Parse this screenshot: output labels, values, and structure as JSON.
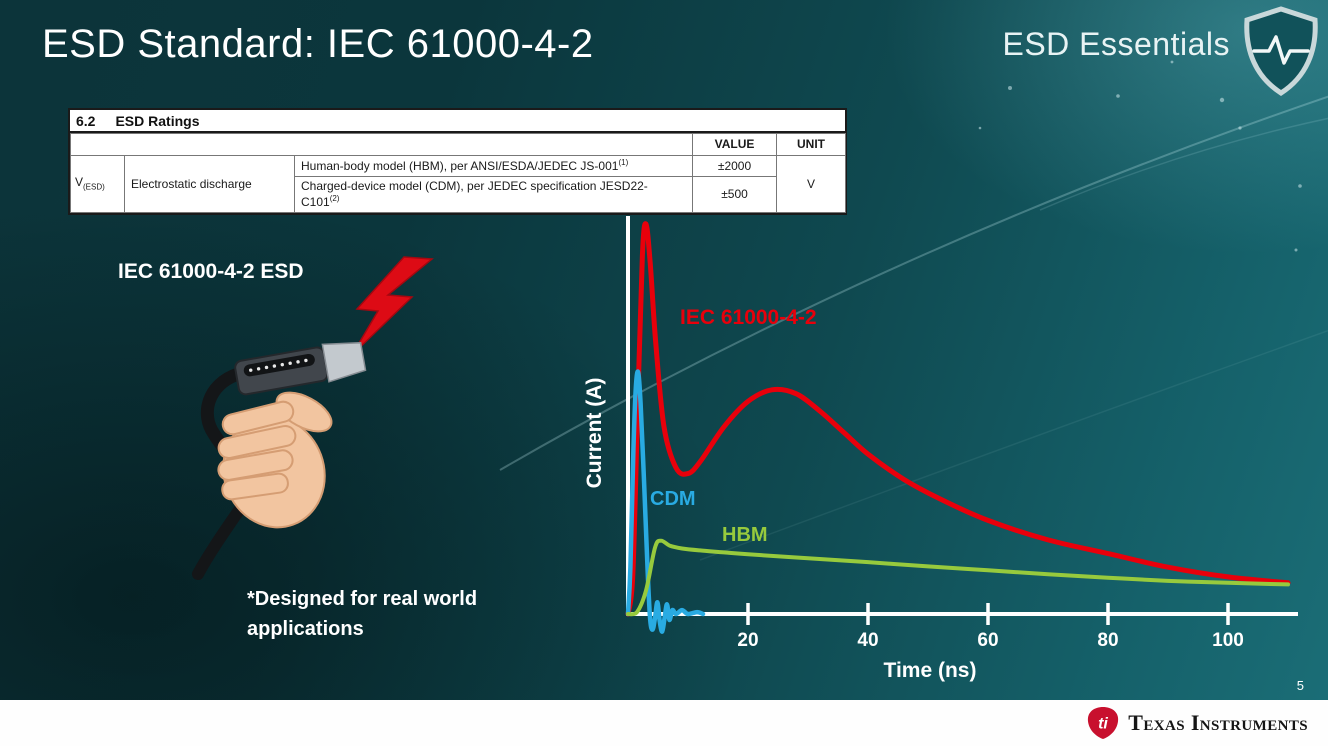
{
  "slide": {
    "title": "ESD Standard: IEC 61000-4-2",
    "brand": "ESD Essentials",
    "page_number": "5",
    "footer_brand": "Texas Instruments"
  },
  "ratings_table": {
    "section_number": "6.2",
    "section_title": "ESD Ratings",
    "value_header": "VALUE",
    "unit_header": "UNIT",
    "param_symbol": "V",
    "param_symbol_sub": "(ESD)",
    "param_name": "Electrostatic discharge",
    "rows": [
      {
        "description": "Human-body model (HBM), per ANSI/ESDA/JEDEC JS-001",
        "footnote": "(1)",
        "value": "±2000"
      },
      {
        "description": "Charged-device model (CDM), per JEDEC specification JESD22-C101",
        "footnote": "(2)",
        "value": "±500"
      }
    ],
    "unit": "V"
  },
  "illustration": {
    "label": "IEC 61000-4-2 ESD",
    "note": "*Designed for real world applications"
  },
  "chart_data": {
    "type": "line",
    "title": "",
    "xlabel": "Time (ns)",
    "ylabel": "Current (A)",
    "xlim": [
      0,
      112
    ],
    "xticks": [
      20,
      40,
      60,
      80,
      100
    ],
    "yticks": [],
    "y_normalization": "no y tick values shown; currents normalized to IEC 61000-4-2 peak = 1.0",
    "grid": false,
    "legend_position": "inline curve labels",
    "series": [
      {
        "id": "iec",
        "name": "IEC 61000-4-2",
        "color": "#e8000b",
        "stroke_width": 5,
        "points": [
          [
            0,
            0
          ],
          [
            0.8,
            0.1
          ],
          [
            1.6,
            0.52
          ],
          [
            2.4,
            0.92
          ],
          [
            3,
            1.0
          ],
          [
            3.7,
            0.9
          ],
          [
            4.6,
            0.7
          ],
          [
            6,
            0.48
          ],
          [
            8,
            0.375
          ],
          [
            10,
            0.36
          ],
          [
            12,
            0.39
          ],
          [
            16,
            0.48
          ],
          [
            20,
            0.545
          ],
          [
            24,
            0.575
          ],
          [
            28,
            0.565
          ],
          [
            32,
            0.52
          ],
          [
            36,
            0.465
          ],
          [
            40,
            0.41
          ],
          [
            46,
            0.345
          ],
          [
            52,
            0.295
          ],
          [
            60,
            0.24
          ],
          [
            70,
            0.19
          ],
          [
            80,
            0.155
          ],
          [
            90,
            0.12
          ],
          [
            100,
            0.095
          ],
          [
            110,
            0.08
          ]
        ]
      },
      {
        "id": "cdm",
        "name": "CDM",
        "color": "#29abe2",
        "stroke_width": 4.5,
        "points": [
          [
            0,
            0
          ],
          [
            0.4,
            0.12
          ],
          [
            0.9,
            0.42
          ],
          [
            1.3,
            0.58
          ],
          [
            1.7,
            0.62
          ],
          [
            2.1,
            0.54
          ],
          [
            2.7,
            0.33
          ],
          [
            3.3,
            0.1
          ],
          [
            3.7,
            -0.015
          ],
          [
            4.1,
            -0.04
          ],
          [
            4.5,
            -0.01
          ],
          [
            4.9,
            0.03
          ],
          [
            5.3,
            -0.02
          ],
          [
            5.7,
            -0.045
          ],
          [
            6.1,
            -0.01
          ],
          [
            6.5,
            0.025
          ],
          [
            6.9,
            -0.015
          ],
          [
            7.4,
            0.01
          ],
          [
            8,
            0
          ],
          [
            9,
            0.01
          ],
          [
            10,
            0
          ],
          [
            11.5,
            0.005
          ],
          [
            12.5,
            0
          ]
        ]
      },
      {
        "id": "hbm",
        "name": "HBM",
        "color": "#97ca3d",
        "stroke_width": 4,
        "points": [
          [
            0,
            0
          ],
          [
            1.5,
            0.005
          ],
          [
            3,
            0.06
          ],
          [
            4.5,
            0.17
          ],
          [
            5.5,
            0.188
          ],
          [
            7,
            0.175
          ],
          [
            9,
            0.168
          ],
          [
            12,
            0.163
          ],
          [
            16,
            0.158
          ],
          [
            20,
            0.153
          ],
          [
            30,
            0.143
          ],
          [
            40,
            0.133
          ],
          [
            50,
            0.122
          ],
          [
            60,
            0.112
          ],
          [
            70,
            0.102
          ],
          [
            80,
            0.093
          ],
          [
            90,
            0.085
          ],
          [
            100,
            0.08
          ],
          [
            107,
            0.077
          ],
          [
            110,
            0.076
          ]
        ]
      }
    ]
  }
}
